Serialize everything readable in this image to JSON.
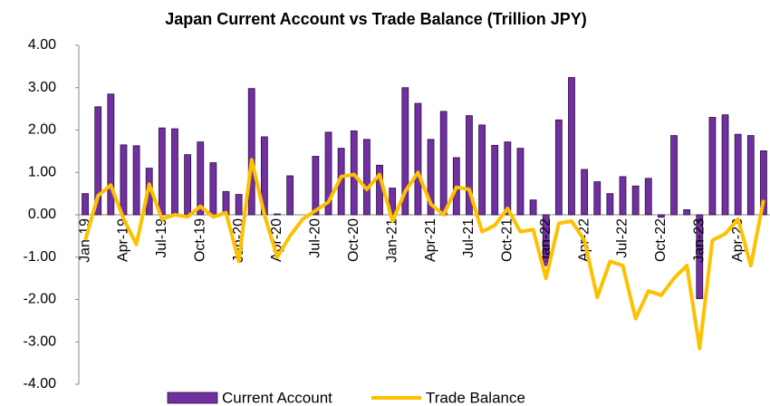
{
  "chart_data": {
    "type": "bar_line",
    "title": "Japan Current Account vs Trade Balance (Trillion JPY)",
    "categories": [
      "Jan-19",
      null,
      null,
      "Apr-19",
      null,
      null,
      "Jul-19",
      null,
      null,
      "Oct-19",
      null,
      null,
      "Jan-20",
      null,
      null,
      "Apr-20",
      null,
      null,
      "Jul-20",
      null,
      null,
      "Oct-20",
      null,
      null,
      "Jan-21",
      null,
      null,
      "Apr-21",
      null,
      null,
      "Jul-21",
      null,
      null,
      "Oct-21",
      null,
      null,
      "Jan-22",
      null,
      null,
      "Apr-22",
      null,
      null,
      "Jul-22",
      null,
      null,
      "Oct-22",
      null,
      null,
      "Jan-23",
      null,
      null,
      "Apr-23",
      null,
      null
    ],
    "series": [
      {
        "name": "Current Account",
        "kind": "bar",
        "color": "#7030a0",
        "values": [
          0.5,
          2.55,
          2.85,
          1.65,
          1.63,
          1.1,
          2.05,
          2.03,
          1.42,
          1.72,
          1.23,
          0.55,
          0.48,
          2.98,
          1.84,
          0.02,
          0.92,
          0.0,
          1.38,
          1.95,
          1.57,
          1.98,
          1.78,
          1.17,
          0.63,
          3.0,
          2.63,
          1.78,
          2.44,
          1.35,
          2.34,
          2.12,
          1.64,
          1.72,
          1.57,
          0.35,
          -1.2,
          2.24,
          3.24,
          1.07,
          0.78,
          0.5,
          0.9,
          0.68,
          0.86,
          -0.06,
          1.87,
          0.12,
          -1.98,
          2.3,
          2.36,
          1.9,
          1.87,
          1.51
        ]
      },
      {
        "name": "Trade Balance",
        "kind": "line",
        "color": "#ffc000",
        "values": [
          -0.6,
          0.45,
          0.7,
          -0.1,
          -0.7,
          0.72,
          -0.1,
          0.0,
          -0.05,
          0.2,
          -0.05,
          0.05,
          -1.1,
          1.3,
          0.0,
          -1.0,
          -0.5,
          -0.1,
          0.1,
          0.3,
          0.9,
          0.95,
          0.6,
          0.95,
          -0.15,
          0.55,
          1.0,
          0.25,
          0.0,
          0.65,
          0.6,
          -0.4,
          -0.25,
          0.15,
          -0.4,
          -0.35,
          -1.5,
          -0.2,
          -0.15,
          -0.6,
          -1.95,
          -1.1,
          -1.2,
          -2.45,
          -1.8,
          -1.9,
          -1.5,
          -1.2,
          -3.15,
          -0.6,
          -0.45,
          -0.1,
          -1.2,
          0.35
        ]
      }
    ],
    "ylim": [
      -4,
      4
    ],
    "yticks": [
      {
        "value": -4,
        "label": "-4.00"
      },
      {
        "value": -3,
        "label": "-3.00"
      },
      {
        "value": -2,
        "label": "-2.00"
      },
      {
        "value": -1,
        "label": "-1.00"
      },
      {
        "value": 0,
        "label": "0.00"
      },
      {
        "value": 1,
        "label": "1.00"
      },
      {
        "value": 2,
        "label": "2.00"
      },
      {
        "value": 3,
        "label": "3.00"
      },
      {
        "value": 4,
        "label": "4.00"
      }
    ],
    "legend": "bottom"
  }
}
